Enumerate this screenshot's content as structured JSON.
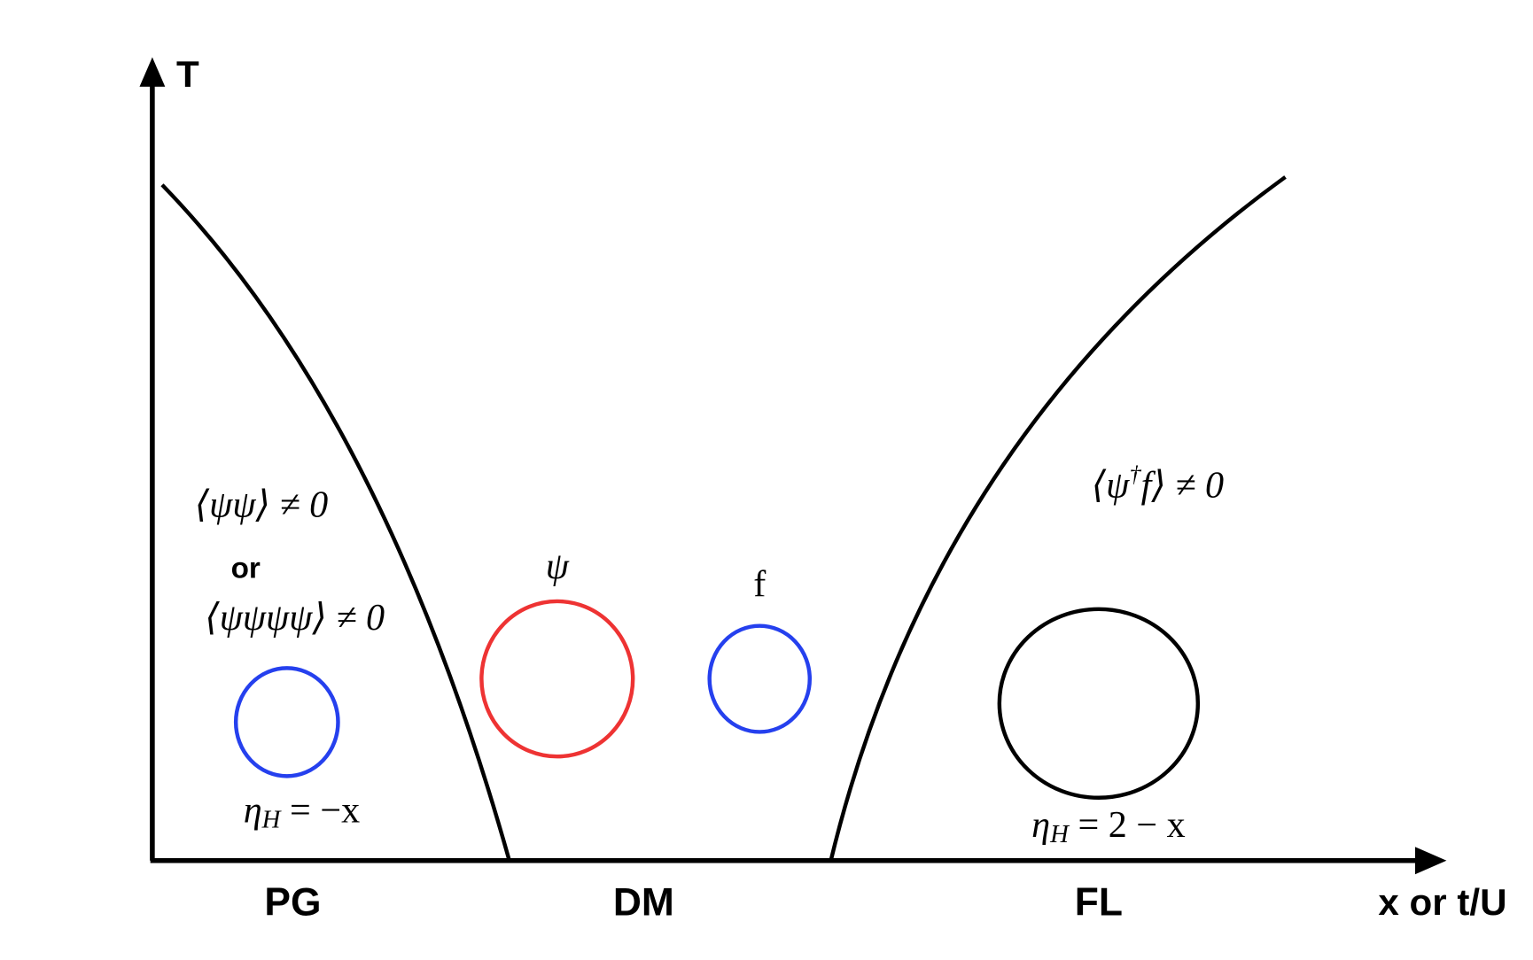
{
  "axes": {
    "y_label": "T",
    "x_label": "x or t/U"
  },
  "regions": [
    {
      "label": "PG"
    },
    {
      "label": "DM"
    },
    {
      "label": "FL"
    }
  ],
  "annotations": {
    "pg_order_1": "⟨ψψ⟩ ≠ 0",
    "pg_or": "or",
    "pg_order_2": "⟨ψψψψ⟩ ≠ 0",
    "pg_hall": {
      "base": "η",
      "sub": "H",
      "rest": " = −x"
    },
    "dm_psi": "ψ",
    "dm_f": "f",
    "fl_order": {
      "pre": "⟨ψ",
      "sup": "†",
      "post": "f⟩ ≠ 0"
    },
    "fl_hall": {
      "base": "η",
      "sub": "H",
      "rest": " = 2 − x"
    }
  }
}
